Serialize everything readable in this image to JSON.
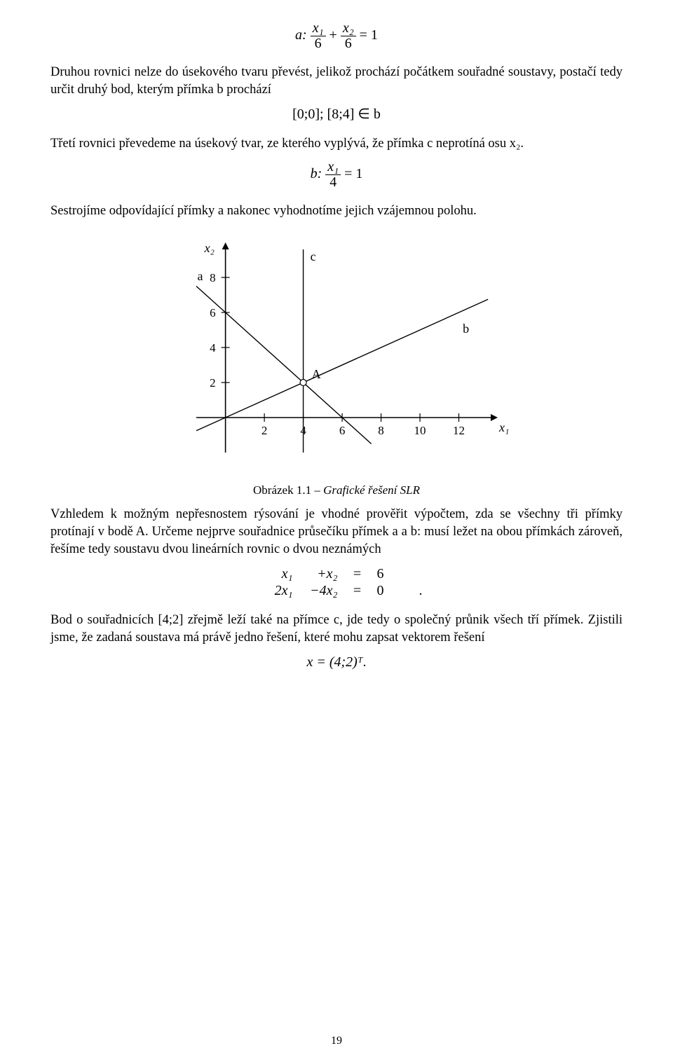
{
  "equations": {
    "a": {
      "prefix": "a:",
      "term1_num": "x₁",
      "term1_den": "6",
      "plus": "+",
      "term2_num": "x₂",
      "term2_den": "6",
      "rhs": "= 1"
    },
    "points": "[0;0]; [8;4] ∈ b",
    "b": {
      "prefix": "b:",
      "num": "x₁",
      "den": "4",
      "rhs": "= 1"
    },
    "system": {
      "row1_l": "x₁",
      "row1_m": "+x₂",
      "row1_eq": "=",
      "row1_r": "6",
      "row2_l": "2x₁",
      "row2_m": "−4x₂",
      "row2_eq": "=",
      "row2_r": "0",
      "trail": "."
    },
    "x_result": "x = (4;2)ᵀ",
    "x_result_trail": "."
  },
  "paragraphs": {
    "p1": "Druhou rovnici nelze do úsekového tvaru převést, jelikož prochází počátkem souřadné soustavy, postačí tedy určit druhý bod, kterým přímka b prochází",
    "p2": "Třetí rovnici převedeme na úsekový tvar, ze kterého vyplývá, že přímka c neprotíná osu x₂.",
    "p3": "Sestrojíme odpovídající přímky a nakonec vyhodnotíme jejich vzájemnou polohu.",
    "p4": "Vzhledem k možným nepřesnostem rýsování je vhodné prověřit výpočtem, zda se všechny tři přímky protínají v bodě A. Určeme nejprve souřadnice průsečíku přímek a a b: musí ležet na obou přímkách zároveň, řešíme tedy soustavu dvou lineárních rovnic o dvou neznámých",
    "p5": "Bod o souřadnicích [4;2] zřejmě leží také na přímce c, jde tedy o společný průnik všech tří přímek. Zjistili jsme, že zadaná soustava má právě jedno řešení, které mohu zapsat vektorem řešení"
  },
  "caption": {
    "label": "Obrázek 1.1",
    "sep": " – ",
    "title": "Grafické řešení SLR"
  },
  "chart": {
    "type": "line",
    "x_label": "x₁",
    "y_label": "x₂",
    "xlim": [
      -1.5,
      14
    ],
    "ylim": [
      -2,
      10
    ],
    "xtick_values": [
      2,
      4,
      6,
      8,
      10,
      12
    ],
    "ytick_values": [
      2,
      4,
      6,
      8
    ],
    "line_a_label": "a",
    "line_b_label": "b",
    "line_c_label": "c",
    "point_A_label": "A",
    "point_A": [
      4,
      2
    ],
    "line_a": {
      "p1": [
        -1.5,
        7.5
      ],
      "p2": [
        7.5,
        -1.5
      ]
    },
    "line_b": {
      "p1": [
        -1.5,
        -0.75
      ],
      "p2": [
        13.5,
        6.75
      ]
    },
    "line_c": {
      "x": 4,
      "y1": -2,
      "y2": 9.6
    },
    "background_color": "#ffffff",
    "axis_color": "#000000",
    "line_color": "#000000",
    "line_width": 1.4,
    "tick_len": 6,
    "tick_fontsize": 17,
    "label_fontsize": 18,
    "marker_radius": 4.5
  },
  "page_number": "19"
}
